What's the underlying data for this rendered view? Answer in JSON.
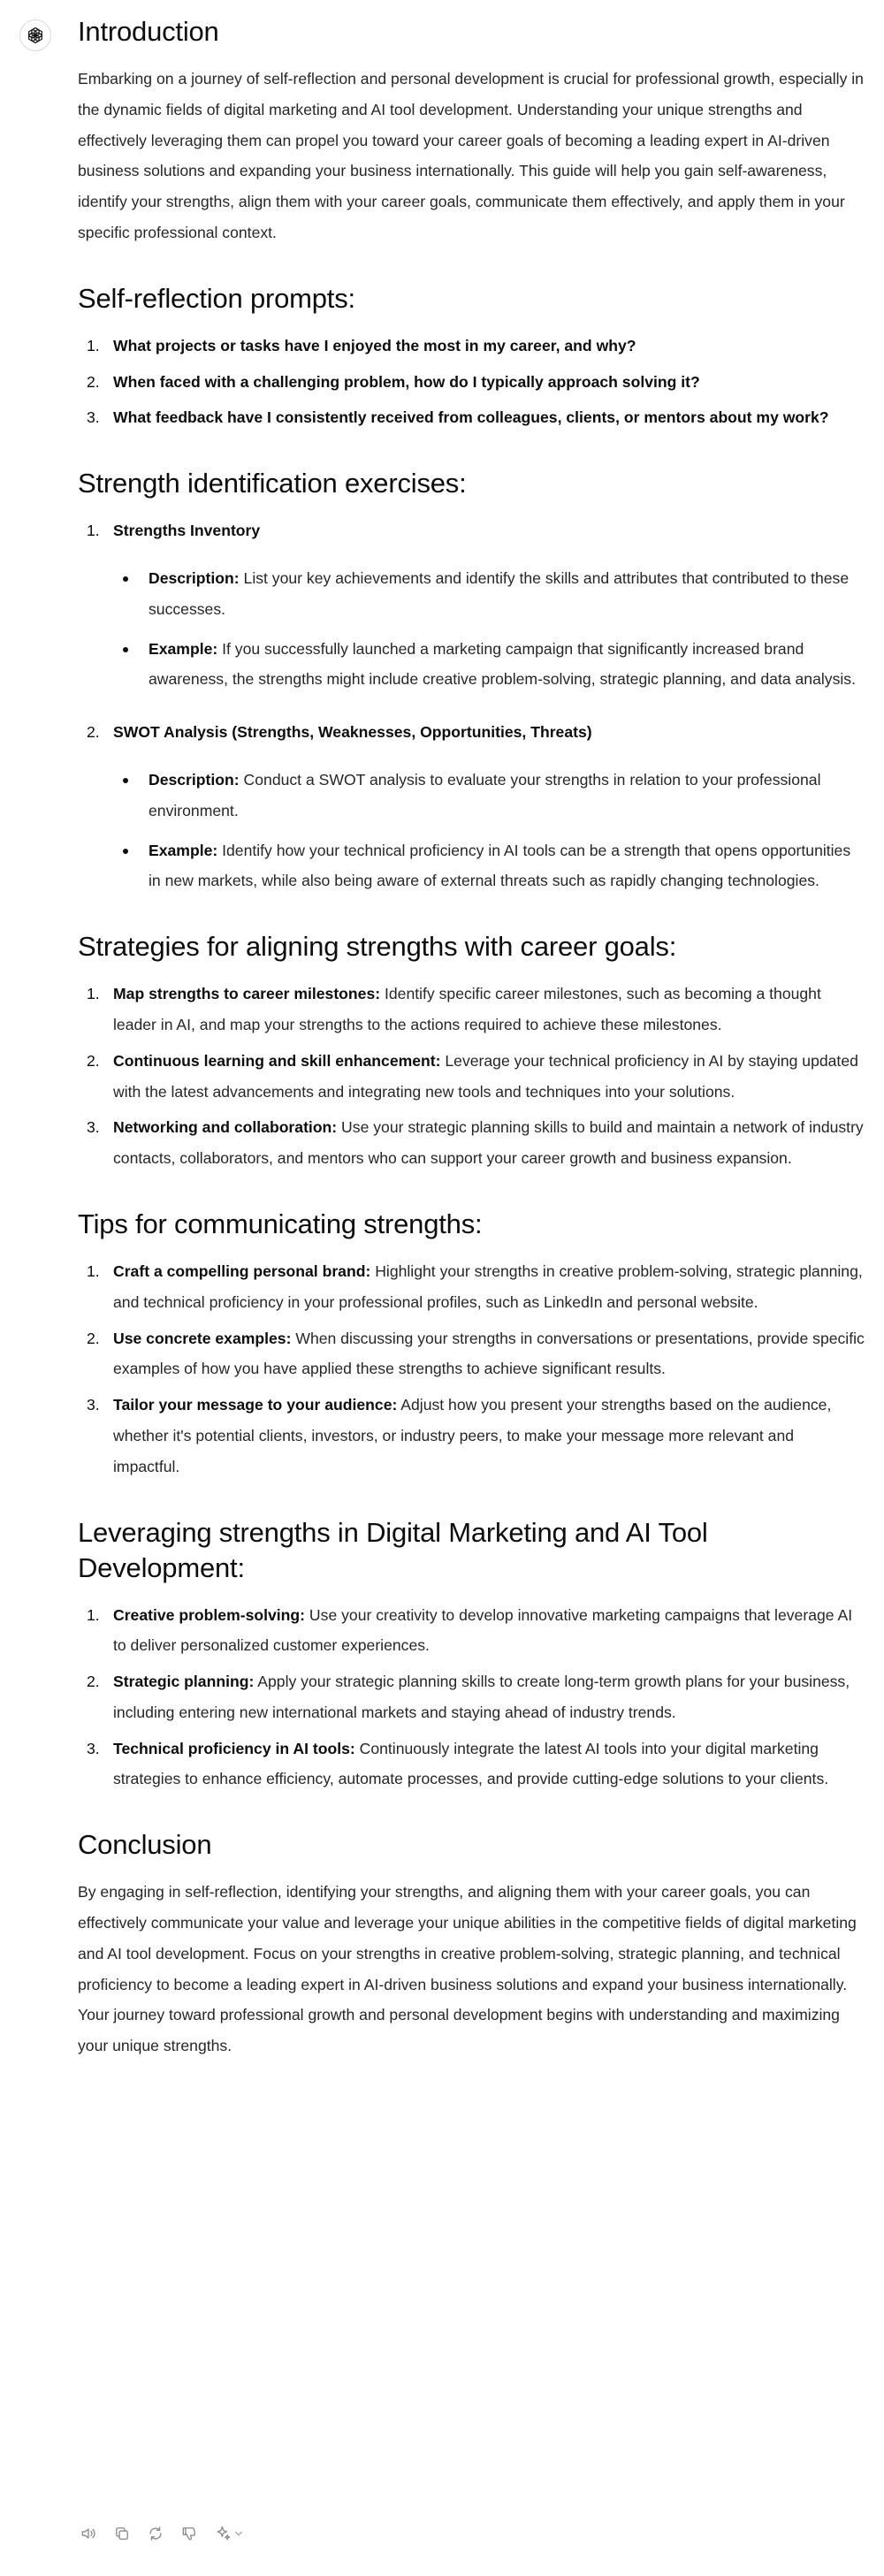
{
  "assistant": {
    "avatar_icon": "openai-logo-icon"
  },
  "intro": {
    "title": "Introduction",
    "text": "Embarking on a journey of self-reflection and personal development is crucial for professional growth, especially in the dynamic fields of digital marketing and AI tool development. Understanding your unique strengths and effectively leveraging them can propel you toward your career goals of becoming a leading expert in AI-driven business solutions and expanding your business internationally. This guide will help you gain self-awareness, identify your strengths, align them with your career goals, communicate them effectively, and apply them in your specific professional context."
  },
  "prompts": {
    "title": "Self-reflection prompts:",
    "items": [
      {
        "n": "1.",
        "text": "What projects or tasks have I enjoyed the most in my career, and why?"
      },
      {
        "n": "2.",
        "text": "When faced with a challenging problem, how do I typically approach solving it?"
      },
      {
        "n": "3.",
        "text": "What feedback have I consistently received from colleagues, clients, or mentors about my work?"
      }
    ]
  },
  "exercises": {
    "title": "Strength identification exercises:",
    "items": [
      {
        "n": "1.",
        "title": "Strengths Inventory",
        "bullets": [
          {
            "label": "Description:",
            "text": " List your key achievements and identify the skills and attributes that contributed to these successes."
          },
          {
            "label": "Example:",
            "text": " If you successfully launched a marketing campaign that significantly increased brand awareness, the strengths might include creative problem-solving, strategic planning, and data analysis."
          }
        ]
      },
      {
        "n": "2.",
        "title": "SWOT Analysis (Strengths, Weaknesses, Opportunities, Threats)",
        "bullets": [
          {
            "label": "Description:",
            "text": " Conduct a SWOT analysis to evaluate your strengths in relation to your professional environment."
          },
          {
            "label": "Example:",
            "text": " Identify how your technical proficiency in AI tools can be a strength that opens opportunities in new markets, while also being aware of external threats such as rapidly changing technologies."
          }
        ]
      }
    ]
  },
  "aligning": {
    "title": "Strategies for aligning strengths with career goals:",
    "items": [
      {
        "n": "1.",
        "label": "Map strengths to career milestones:",
        "text": " Identify specific career milestones, such as becoming a thought leader in AI, and map your strengths to the actions required to achieve these milestones."
      },
      {
        "n": "2.",
        "label": "Continuous learning and skill enhancement:",
        "text": " Leverage your technical proficiency in AI by staying updated with the latest advancements and integrating new tools and techniques into your solutions."
      },
      {
        "n": "3.",
        "label": "Networking and collaboration:",
        "text": " Use your strategic planning skills to build and maintain a network of industry contacts, collaborators, and mentors who can support your career growth and business expansion."
      }
    ]
  },
  "tips": {
    "title": "Tips for communicating strengths:",
    "items": [
      {
        "n": "1.",
        "label": "Craft a compelling personal brand:",
        "text": " Highlight your strengths in creative problem-solving, strategic planning, and technical proficiency in your professional profiles, such as LinkedIn and personal website."
      },
      {
        "n": "2.",
        "label": "Use concrete examples:",
        "text": " When discussing your strengths in conversations or presentations, provide specific examples of how you have applied these strengths to achieve significant results."
      },
      {
        "n": "3.",
        "label": "Tailor your message to your audience:",
        "text": " Adjust how you present your strengths based on the audience, whether it's potential clients, investors, or industry peers, to make your message more relevant and impactful."
      }
    ]
  },
  "leveraging": {
    "title": "Leveraging strengths in Digital Marketing and AI Tool Development:",
    "items": [
      {
        "n": "1.",
        "label": "Creative problem-solving:",
        "text": " Use your creativity to develop innovative marketing campaigns that leverage AI to deliver personalized customer experiences."
      },
      {
        "n": "2.",
        "label": "Strategic planning:",
        "text": " Apply your strategic planning skills to create long-term growth plans for your business, including entering new international markets and staying ahead of industry trends."
      },
      {
        "n": "3.",
        "label": "Technical proficiency in AI tools:",
        "text": " Continuously integrate the latest AI tools into your digital marketing strategies to enhance efficiency, automate processes, and provide cutting-edge solutions to your clients."
      }
    ]
  },
  "conclusion": {
    "title": "Conclusion",
    "text": "By engaging in self-reflection, identifying your strengths, and aligning them with your career goals, you can effectively communicate your value and leverage your unique abilities in the competitive fields of digital marketing and AI tool development. Focus on your strengths in creative problem-solving, strategic planning, and technical proficiency to become a leading expert in AI-driven business solutions and expand your business internationally. Your journey toward professional growth and personal development begins with understanding and maximizing your unique strengths."
  },
  "actions": {
    "icons": [
      "speaker-icon",
      "copy-icon",
      "regenerate-icon",
      "thumbs-down-icon",
      "sparkle-model-icon",
      "chevron-down-icon"
    ]
  }
}
